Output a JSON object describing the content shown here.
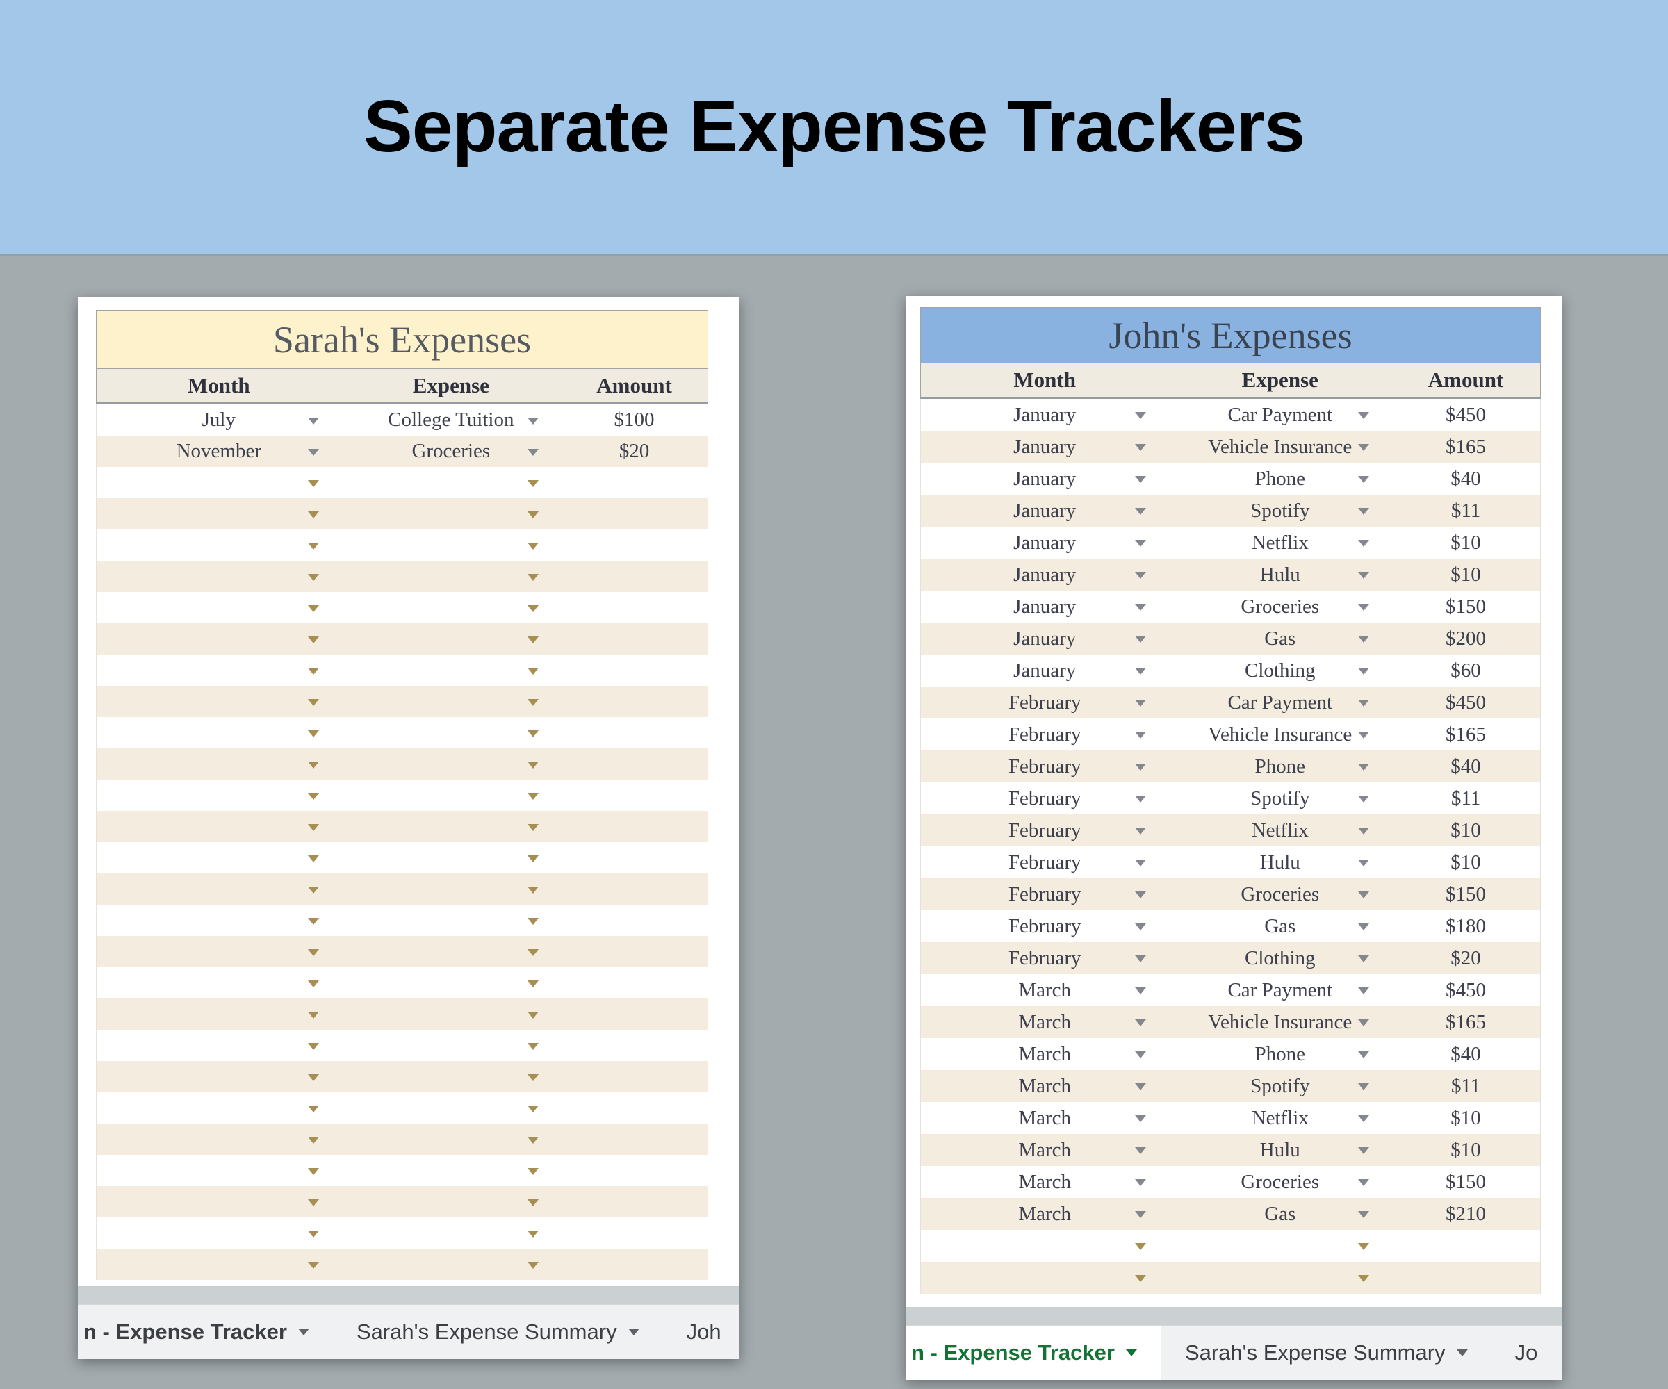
{
  "banner": {
    "title": "Separate Expense Trackers"
  },
  "colors": {
    "banner_bg": "#a3c7e9",
    "page_bg": "#a4abae",
    "sarah_title_bg": "#fdf2cc",
    "john_title_bg": "#8ab2e0",
    "column_header_bg": "#f0ebe1",
    "row_stripe": "#f3ecdf",
    "dropdown_arrow": "#a78e52",
    "active_tab_text": "#137333"
  },
  "panels": {
    "sarah": {
      "title": "Sarah's Expenses",
      "columns": [
        "Month",
        "Expense",
        "Amount"
      ],
      "rows": [
        {
          "month": "July",
          "expense": "College Tuition",
          "amount": "$100"
        },
        {
          "month": "November",
          "expense": "Groceries",
          "amount": "$20"
        }
      ],
      "empty_rows": 26,
      "tabs": [
        {
          "label": "n - Expense Tracker",
          "active": false,
          "bold": true,
          "arrow": true
        },
        {
          "label": "Sarah's Expense Summary",
          "active": false,
          "bold": false,
          "arrow": true
        },
        {
          "label": "Joh",
          "active": false,
          "bold": false,
          "arrow": false
        }
      ]
    },
    "john": {
      "title": "John's Expenses",
      "columns": [
        "Month",
        "Expense",
        "Amount"
      ],
      "rows": [
        {
          "month": "January",
          "expense": "Car Payment",
          "amount": "$450"
        },
        {
          "month": "January",
          "expense": "Vehicle Insurance",
          "amount": "$165"
        },
        {
          "month": "January",
          "expense": "Phone",
          "amount": "$40"
        },
        {
          "month": "January",
          "expense": "Spotify",
          "amount": "$11"
        },
        {
          "month": "January",
          "expense": "Netflix",
          "amount": "$10"
        },
        {
          "month": "January",
          "expense": "Hulu",
          "amount": "$10"
        },
        {
          "month": "January",
          "expense": "Groceries",
          "amount": "$150"
        },
        {
          "month": "January",
          "expense": "Gas",
          "amount": "$200"
        },
        {
          "month": "January",
          "expense": "Clothing",
          "amount": "$60"
        },
        {
          "month": "February",
          "expense": "Car Payment",
          "amount": "$450"
        },
        {
          "month": "February",
          "expense": "Vehicle Insurance",
          "amount": "$165"
        },
        {
          "month": "February",
          "expense": "Phone",
          "amount": "$40"
        },
        {
          "month": "February",
          "expense": "Spotify",
          "amount": "$11"
        },
        {
          "month": "February",
          "expense": "Netflix",
          "amount": "$10"
        },
        {
          "month": "February",
          "expense": "Hulu",
          "amount": "$10"
        },
        {
          "month": "February",
          "expense": "Groceries",
          "amount": "$150"
        },
        {
          "month": "February",
          "expense": "Gas",
          "amount": "$180"
        },
        {
          "month": "February",
          "expense": "Clothing",
          "amount": "$20"
        },
        {
          "month": "March",
          "expense": "Car Payment",
          "amount": "$450"
        },
        {
          "month": "March",
          "expense": "Vehicle Insurance",
          "amount": "$165"
        },
        {
          "month": "March",
          "expense": "Phone",
          "amount": "$40"
        },
        {
          "month": "March",
          "expense": "Spotify",
          "amount": "$11"
        },
        {
          "month": "March",
          "expense": "Netflix",
          "amount": "$10"
        },
        {
          "month": "March",
          "expense": "Hulu",
          "amount": "$10"
        },
        {
          "month": "March",
          "expense": "Groceries",
          "amount": "$150"
        },
        {
          "month": "March",
          "expense": "Gas",
          "amount": "$210"
        }
      ],
      "empty_rows": 2,
      "tabs": [
        {
          "label": "n - Expense Tracker",
          "active": true,
          "bold": true,
          "arrow": true
        },
        {
          "label": "Sarah's Expense Summary",
          "active": false,
          "bold": false,
          "arrow": true
        },
        {
          "label": "Jo",
          "active": false,
          "bold": false,
          "arrow": false
        }
      ]
    }
  }
}
